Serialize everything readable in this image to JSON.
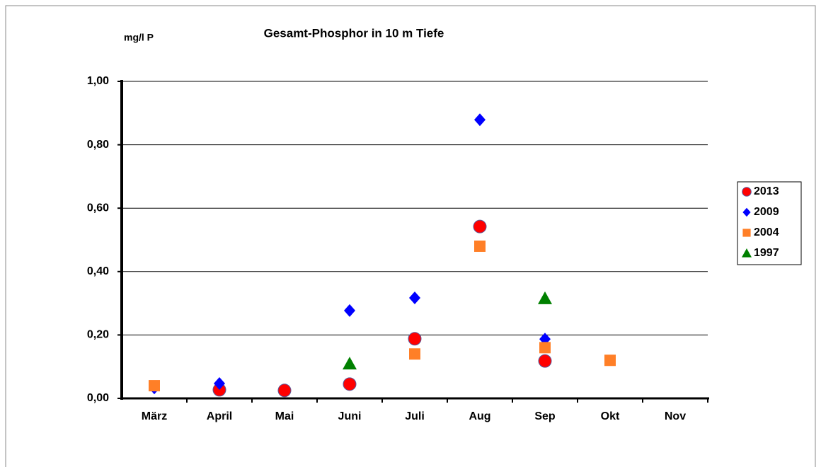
{
  "chart_data": {
    "type": "scatter",
    "title": "Gesamt-Phosphor  in  10 m Tiefe",
    "y_label": "mg/l P",
    "categories": [
      "März",
      "April",
      "Mai",
      "Juni",
      "Juli",
      "Aug",
      "Sep",
      "Okt",
      "Nov"
    ],
    "ylim": [
      0,
      1
    ],
    "yticks": [
      {
        "value": 0,
        "label": "0,00"
      },
      {
        "value": 0.2,
        "label": "0,20"
      },
      {
        "value": 0.4,
        "label": "0,40"
      },
      {
        "value": 0.6,
        "label": "0,60"
      },
      {
        "value": 0.8,
        "label": "0,80"
      },
      {
        "value": 1,
        "label": "1,00"
      }
    ],
    "grid": true,
    "legend": "right",
    "series": [
      {
        "name": "2013",
        "color": "#ff0000",
        "marker": "circle",
        "values": [
          null,
          0.027,
          0.025,
          0.045,
          0.188,
          0.542,
          0.118,
          null,
          null
        ]
      },
      {
        "name": "2009",
        "color": "#0000ff",
        "marker": "diamond",
        "values": [
          0.033,
          0.047,
          null,
          0.277,
          0.317,
          0.879,
          0.187,
          null,
          null
        ]
      },
      {
        "name": "2004",
        "color": "#ff7f27",
        "marker": "square",
        "values": [
          0.04,
          null,
          null,
          null,
          0.14,
          0.48,
          0.16,
          0.12,
          null
        ]
      },
      {
        "name": "1997",
        "color": "#008000",
        "marker": "triangle",
        "values": [
          null,
          null,
          null,
          0.109,
          null,
          null,
          0.315,
          null,
          null
        ]
      }
    ]
  }
}
